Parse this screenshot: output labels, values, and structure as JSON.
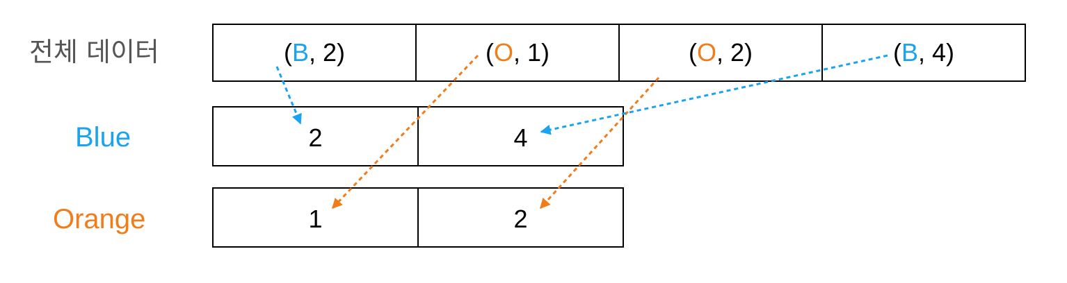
{
  "colors": {
    "blue": "#1aa3f0",
    "orange": "#f07c1a",
    "label_gray": "#555555"
  },
  "labels": {
    "all": "전체 데이터",
    "blue": "Blue",
    "orange": "Orange"
  },
  "all_data": [
    {
      "paren_open": "(",
      "key": "B",
      "rest": ", 2)",
      "color": "blue"
    },
    {
      "paren_open": "(",
      "key": "O",
      "rest": ", 1)",
      "color": "orange"
    },
    {
      "paren_open": "(",
      "key": "O",
      "rest": ", 2)",
      "color": "orange"
    },
    {
      "paren_open": "(",
      "key": "B",
      "rest": ", 4)",
      "color": "blue"
    }
  ],
  "blue_values": [
    "2",
    "4"
  ],
  "orange_values": [
    "1",
    "2"
  ],
  "arrows": [
    {
      "from": "all_data.0",
      "to": "blue_values.0",
      "color": "blue"
    },
    {
      "from": "all_data.1",
      "to": "orange_values.0",
      "color": "orange"
    },
    {
      "from": "all_data.2",
      "to": "orange_values.1",
      "color": "orange"
    },
    {
      "from": "all_data.3",
      "to": "blue_values.1",
      "color": "blue"
    }
  ]
}
